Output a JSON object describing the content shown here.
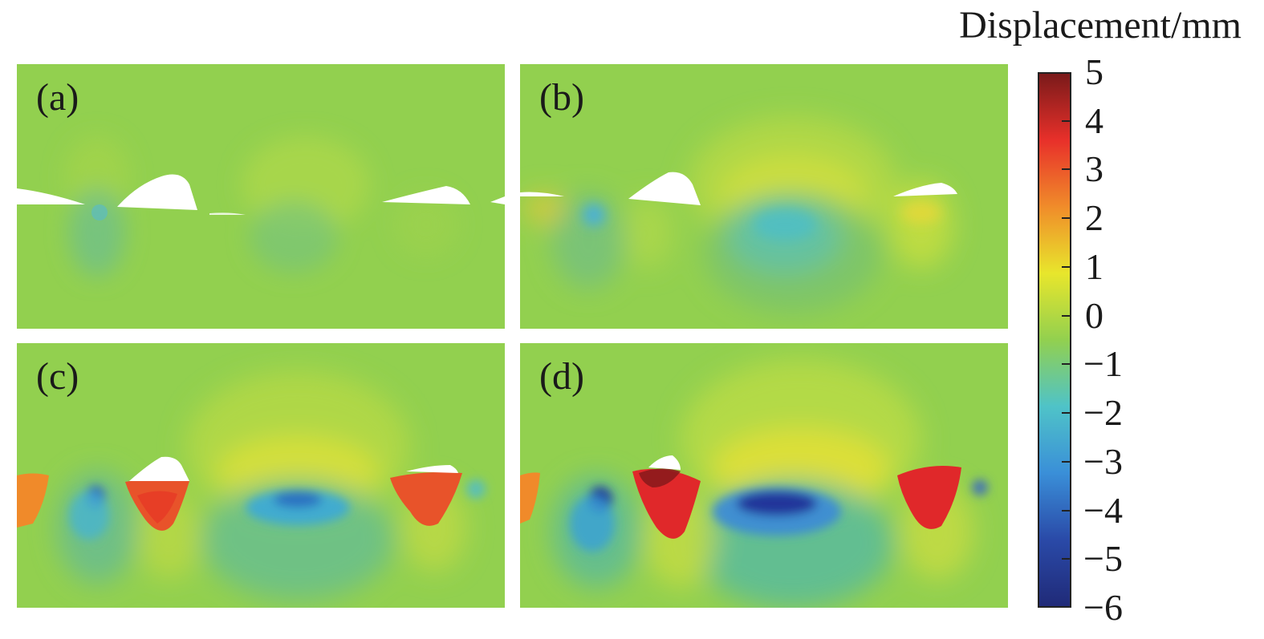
{
  "colorbar": {
    "title": "Displacement/mm",
    "ticks": [
      "5",
      "4",
      "3",
      "2",
      "1",
      "0",
      "−1",
      "−2",
      "−3",
      "−4",
      "−5",
      "−6"
    ],
    "min": -6,
    "max": 5,
    "colors": [
      "#7a1a1a",
      "#e8302a",
      "#f08c2a",
      "#e8e62c",
      "#92d04f",
      "#4fc3c8",
      "#3a8fd8",
      "#2a4aa8",
      "#202a78"
    ]
  },
  "panels": [
    {
      "label": "(a)"
    },
    {
      "label": "(b)"
    },
    {
      "label": "(c)"
    },
    {
      "label": "(d)"
    }
  ]
}
